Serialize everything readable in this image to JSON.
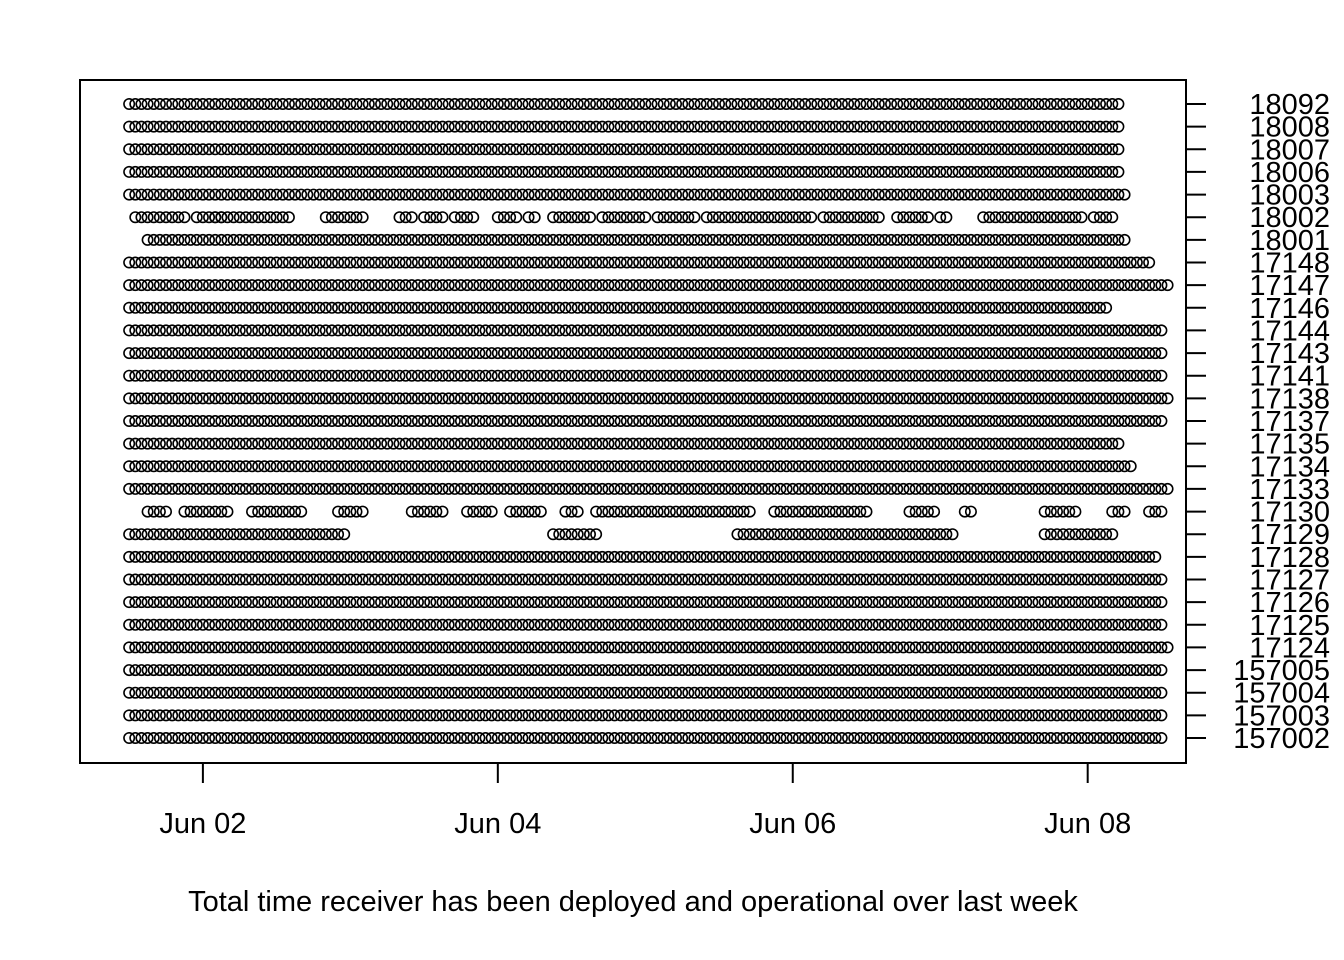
{
  "chart_data": {
    "type": "scatter",
    "title": "",
    "xlabel": "Total time receiver has been deployed and operational over last week",
    "ylabel": "",
    "x_axis": {
      "ticks": [
        {
          "value": "2018-06-02",
          "label": "Jun 02"
        },
        {
          "value": "2018-06-04",
          "label": "Jun 04"
        },
        {
          "value": "2018-06-06",
          "label": "Jun 06"
        },
        {
          "value": "2018-06-08",
          "label": "Jun 08"
        }
      ],
      "range": [
        "2018-06-01T04:00",
        "2018-06-08T16:00"
      ]
    },
    "y_axis": {
      "side": "right",
      "categories": [
        "157002",
        "157003",
        "157004",
        "157005",
        "17124",
        "17125",
        "17126",
        "17127",
        "17128",
        "17129",
        "17130",
        "17133",
        "17134",
        "17135",
        "17137",
        "17138",
        "17141",
        "17143",
        "17144",
        "17146",
        "17147",
        "17148",
        "18001",
        "18002",
        "18003",
        "18006",
        "18007",
        "18008",
        "18092"
      ]
    },
    "interval_hours": 1,
    "series": [
      {
        "receiver": "157002",
        "segments": [
          [
            "2018-06-01T12:00",
            "2018-06-08T12:00"
          ]
        ]
      },
      {
        "receiver": "157003",
        "segments": [
          [
            "2018-06-01T12:00",
            "2018-06-08T12:00"
          ]
        ]
      },
      {
        "receiver": "157004",
        "segments": [
          [
            "2018-06-01T12:00",
            "2018-06-08T12:00"
          ]
        ]
      },
      {
        "receiver": "157005",
        "segments": [
          [
            "2018-06-01T12:00",
            "2018-06-08T12:00"
          ]
        ]
      },
      {
        "receiver": "17124",
        "segments": [
          [
            "2018-06-01T12:00",
            "2018-06-08T13:00"
          ]
        ]
      },
      {
        "receiver": "17125",
        "segments": [
          [
            "2018-06-01T12:00",
            "2018-06-08T12:00"
          ]
        ]
      },
      {
        "receiver": "17126",
        "segments": [
          [
            "2018-06-01T12:00",
            "2018-06-08T12:00"
          ]
        ]
      },
      {
        "receiver": "17127",
        "segments": [
          [
            "2018-06-01T12:00",
            "2018-06-08T12:00"
          ]
        ]
      },
      {
        "receiver": "17128",
        "segments": [
          [
            "2018-06-01T12:00",
            "2018-06-08T11:00"
          ]
        ]
      },
      {
        "receiver": "17129",
        "segments": [
          [
            "2018-06-01T12:00",
            "2018-06-02T23:00"
          ],
          [
            "2018-06-04T09:00",
            "2018-06-04T16:00"
          ],
          [
            "2018-06-05T15:00",
            "2018-06-07T02:00"
          ],
          [
            "2018-06-07T17:00",
            "2018-06-08T04:00"
          ]
        ]
      },
      {
        "receiver": "17130",
        "segments": [
          [
            "2018-06-01T15:00",
            "2018-06-01T18:00"
          ],
          [
            "2018-06-01T21:00",
            "2018-06-02T00:00"
          ],
          [
            "2018-06-02T01:00",
            "2018-06-02T04:00"
          ],
          [
            "2018-06-02T08:00",
            "2018-06-02T16:00"
          ],
          [
            "2018-06-02T22:00",
            "2018-06-03T02:00"
          ],
          [
            "2018-06-03T10:00",
            "2018-06-03T15:00"
          ],
          [
            "2018-06-03T19:00",
            "2018-06-03T23:00"
          ],
          [
            "2018-06-04T02:00",
            "2018-06-04T07:00"
          ],
          [
            "2018-06-04T11:00",
            "2018-06-04T13:00"
          ],
          [
            "2018-06-04T16:00",
            "2018-06-05T17:00"
          ],
          [
            "2018-06-05T21:00",
            "2018-06-06T12:00"
          ],
          [
            "2018-06-06T19:00",
            "2018-06-06T23:00"
          ],
          [
            "2018-06-07T04:00",
            "2018-06-07T05:00"
          ],
          [
            "2018-06-07T17:00",
            "2018-06-07T22:00"
          ],
          [
            "2018-06-08T04:00",
            "2018-06-08T06:00"
          ],
          [
            "2018-06-08T10:00",
            "2018-06-08T12:00"
          ]
        ]
      },
      {
        "receiver": "17133",
        "segments": [
          [
            "2018-06-01T12:00",
            "2018-06-08T13:00"
          ]
        ]
      },
      {
        "receiver": "17134",
        "segments": [
          [
            "2018-06-01T12:00",
            "2018-06-08T07:00"
          ]
        ]
      },
      {
        "receiver": "17135",
        "segments": [
          [
            "2018-06-01T12:00",
            "2018-06-08T05:00"
          ]
        ]
      },
      {
        "receiver": "17137",
        "segments": [
          [
            "2018-06-01T12:00",
            "2018-06-08T12:00"
          ]
        ]
      },
      {
        "receiver": "17138",
        "segments": [
          [
            "2018-06-01T12:00",
            "2018-06-08T13:00"
          ]
        ]
      },
      {
        "receiver": "17141",
        "segments": [
          [
            "2018-06-01T12:00",
            "2018-06-08T12:00"
          ]
        ]
      },
      {
        "receiver": "17143",
        "segments": [
          [
            "2018-06-01T12:00",
            "2018-06-08T12:00"
          ]
        ]
      },
      {
        "receiver": "17144",
        "segments": [
          [
            "2018-06-01T12:00",
            "2018-06-08T12:00"
          ]
        ]
      },
      {
        "receiver": "17146",
        "segments": [
          [
            "2018-06-01T12:00",
            "2018-06-08T03:00"
          ]
        ]
      },
      {
        "receiver": "17147",
        "segments": [
          [
            "2018-06-01T12:00",
            "2018-06-08T13:00"
          ]
        ]
      },
      {
        "receiver": "17148",
        "segments": [
          [
            "2018-06-01T12:00",
            "2018-06-08T10:00"
          ]
        ]
      },
      {
        "receiver": "18001",
        "segments": [
          [
            "2018-06-01T15:00",
            "2018-06-08T06:00"
          ]
        ]
      },
      {
        "receiver": "18002",
        "segments": [
          [
            "2018-06-01T13:00",
            "2018-06-01T21:00"
          ],
          [
            "2018-06-01T23:00",
            "2018-06-02T03:00"
          ],
          [
            "2018-06-02T02:00",
            "2018-06-02T14:00"
          ],
          [
            "2018-06-02T20:00",
            "2018-06-02T23:00"
          ],
          [
            "2018-06-02T24:00",
            "2018-06-03T02:00"
          ],
          [
            "2018-06-03T08:00",
            "2018-06-03T10:00"
          ],
          [
            "2018-06-03T12:00",
            "2018-06-03T15:00"
          ],
          [
            "2018-06-03T17:00",
            "2018-06-03T20:00"
          ],
          [
            "2018-06-04T00:00",
            "2018-06-04T03:00"
          ],
          [
            "2018-06-04T05:00",
            "2018-06-04T06:00"
          ],
          [
            "2018-06-04T09:00",
            "2018-06-04T15:00"
          ],
          [
            "2018-06-04T17:00",
            "2018-06-04T21:00"
          ],
          [
            "2018-06-04T22:00",
            "2018-06-05T00:00"
          ],
          [
            "2018-06-05T02:00",
            "2018-06-05T08:00"
          ],
          [
            "2018-06-05T10:00",
            "2018-06-05T15:00"
          ],
          [
            "2018-06-05T16:00",
            "2018-06-05T21:00"
          ],
          [
            "2018-06-05T22:00",
            "2018-06-06T03:00"
          ],
          [
            "2018-06-06T05:00",
            "2018-06-06T14:00"
          ],
          [
            "2018-06-06T17:00",
            "2018-06-06T22:00"
          ],
          [
            "2018-06-06T24:00",
            "2018-06-07T01:00"
          ],
          [
            "2018-06-07T07:00",
            "2018-06-07T20:00"
          ],
          [
            "2018-06-07T21:00",
            "2018-06-07T23:00"
          ],
          [
            "2018-06-08T01:00",
            "2018-06-08T04:00"
          ]
        ]
      },
      {
        "receiver": "18003",
        "segments": [
          [
            "2018-06-01T12:00",
            "2018-06-08T06:00"
          ]
        ]
      },
      {
        "receiver": "18006",
        "segments": [
          [
            "2018-06-01T12:00",
            "2018-06-08T05:00"
          ]
        ]
      },
      {
        "receiver": "18007",
        "segments": [
          [
            "2018-06-01T12:00",
            "2018-06-08T05:00"
          ]
        ]
      },
      {
        "receiver": "18008",
        "segments": [
          [
            "2018-06-01T12:00",
            "2018-06-08T05:00"
          ]
        ]
      },
      {
        "receiver": "18092",
        "segments": [
          [
            "2018-06-01T12:00",
            "2018-06-08T05:00"
          ]
        ]
      }
    ],
    "marker": "open-circle",
    "grid": false,
    "legend": "none"
  }
}
